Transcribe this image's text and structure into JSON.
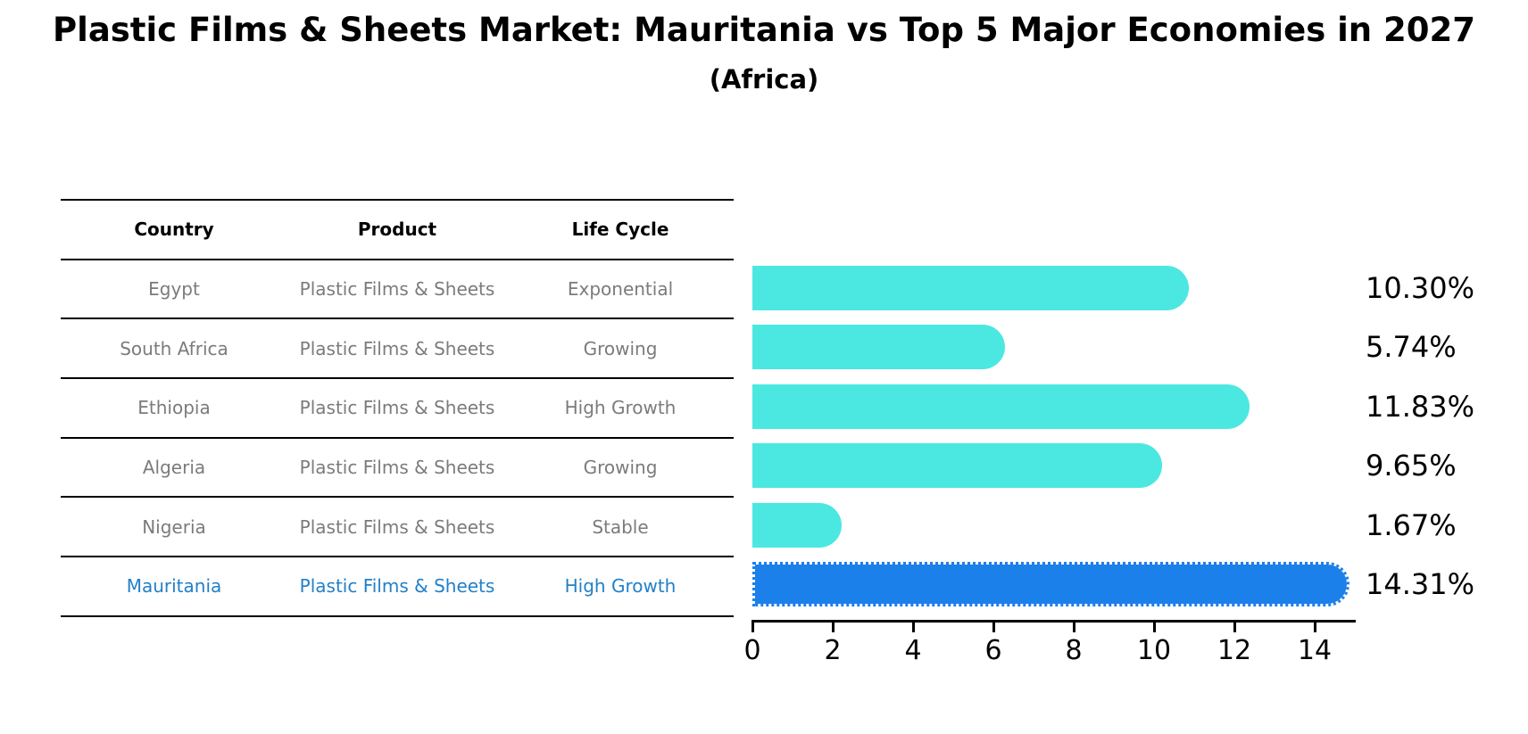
{
  "title": "Plastic Films & Sheets Market: Mauritania vs Top 5 Major Economies in 2027",
  "subtitle": "(Africa)",
  "table": {
    "headers": [
      "Country",
      "Product",
      "Life Cycle"
    ],
    "rows": [
      {
        "country": "Egypt",
        "product": "Plastic Films & Sheets",
        "life_cycle": "Exponential",
        "highlight": false
      },
      {
        "country": "South Africa",
        "product": "Plastic Films & Sheets",
        "life_cycle": "Growing",
        "highlight": false
      },
      {
        "country": "Ethiopia",
        "product": "Plastic Films & Sheets",
        "life_cycle": "High Growth",
        "highlight": false
      },
      {
        "country": "Algeria",
        "product": "Plastic Films & Sheets",
        "life_cycle": "Growing",
        "highlight": false
      },
      {
        "country": "Nigeria",
        "product": "Plastic Films & Sheets",
        "life_cycle": "Stable",
        "highlight": false
      },
      {
        "country": "Mauritania",
        "product": "Plastic Films & Sheets",
        "life_cycle": "High Growth",
        "highlight": true
      }
    ]
  },
  "chart_data": {
    "type": "bar",
    "orientation": "horizontal",
    "categories": [
      "Egypt",
      "South Africa",
      "Ethiopia",
      "Algeria",
      "Nigeria",
      "Mauritania"
    ],
    "values": [
      10.3,
      5.74,
      11.83,
      9.65,
      1.67,
      14.31
    ],
    "value_labels": [
      "10.30%",
      "5.74%",
      "11.83%",
      "9.65%",
      "1.67%",
      "14.31%"
    ],
    "highlight_index": 5,
    "x_ticks": [
      0,
      2,
      4,
      6,
      8,
      10,
      12,
      14
    ],
    "xlim": [
      0,
      15
    ],
    "grid": false,
    "legend": false,
    "bar_color": "#4be8e1",
    "highlight_color": "#1c80ea",
    "highlight_text_color": "#2280c8",
    "muted_text_color": "#7b7b7b"
  }
}
